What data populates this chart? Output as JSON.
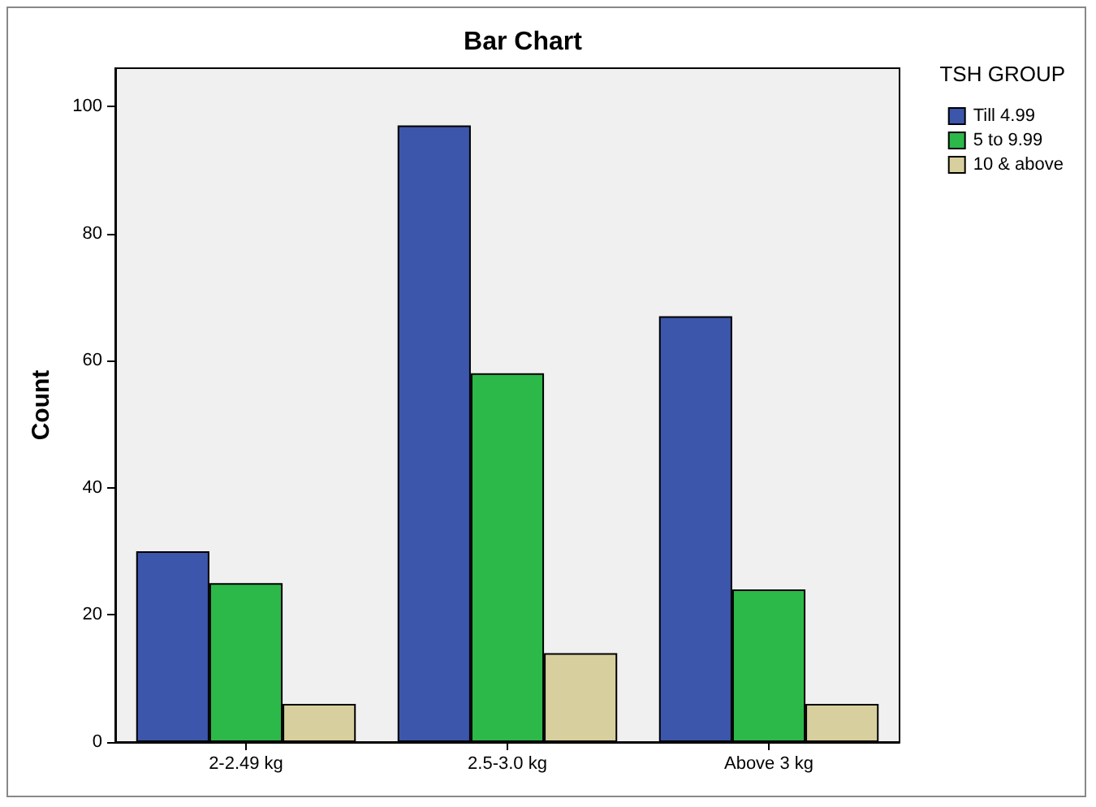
{
  "chart_data": {
    "type": "bar",
    "title": "Bar Chart",
    "ylabel": "Count",
    "legend_title": "TSH GROUP",
    "categories": [
      "2-2.49 kg",
      "2.5-3.0 kg",
      "Above 3 kg"
    ],
    "series": [
      {
        "name": "Till 4.99",
        "color": "#3c56ab",
        "values": [
          30,
          97,
          67
        ]
      },
      {
        "name": "5 to 9.99",
        "color": "#2db84a",
        "values": [
          25,
          58,
          24
        ]
      },
      {
        "name": "10 & above",
        "color": "#d7cf9e",
        "values": [
          6,
          14,
          6
        ]
      }
    ],
    "ylim": [
      0,
      106
    ],
    "yticks": [
      0,
      20,
      40,
      60,
      80,
      100
    ],
    "grid": false,
    "legend": "right"
  }
}
